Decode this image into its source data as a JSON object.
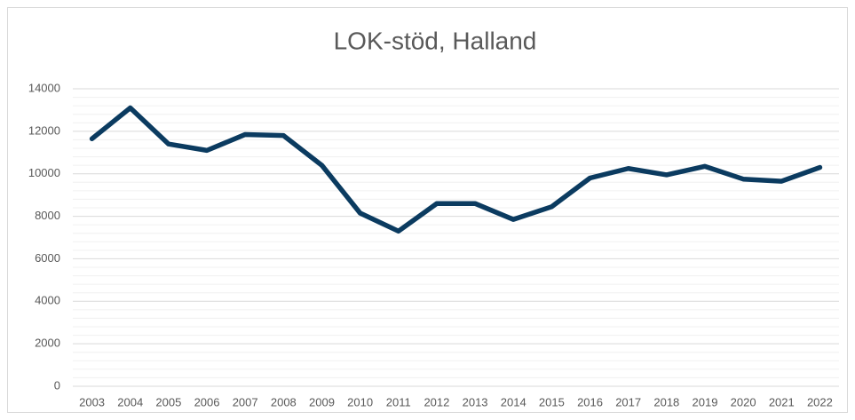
{
  "chart_data": {
    "type": "line",
    "title": "LOK-stöd, Halland",
    "categories": [
      "2003",
      "2004",
      "2005",
      "2006",
      "2007",
      "2008",
      "2009",
      "2010",
      "2011",
      "2012",
      "2013",
      "2014",
      "2015",
      "2016",
      "2017",
      "2018",
      "2019",
      "2020",
      "2021",
      "2022"
    ],
    "series": [
      {
        "name": "LOK-stöd",
        "color": "#0b3b60",
        "values": [
          11650,
          13100,
          11400,
          11100,
          11850,
          11800,
          10400,
          8150,
          7300,
          8600,
          8600,
          7850,
          8450,
          9800,
          10250,
          9950,
          10350,
          9750,
          9650,
          10300
        ]
      }
    ],
    "ylim": [
      0,
      14000
    ],
    "yticks": [
      0,
      2000,
      4000,
      6000,
      8000,
      10000,
      12000,
      14000
    ],
    "minor_yticks": [
      400,
      800,
      1200,
      1600,
      2400,
      2800,
      3200,
      3600,
      4400,
      4800,
      5200,
      5600,
      6400,
      6800,
      7200,
      7600,
      8400,
      8800,
      9200,
      9600,
      10400,
      10800,
      11200,
      11600,
      12400,
      12800,
      13200,
      13600
    ],
    "grid": true
  }
}
